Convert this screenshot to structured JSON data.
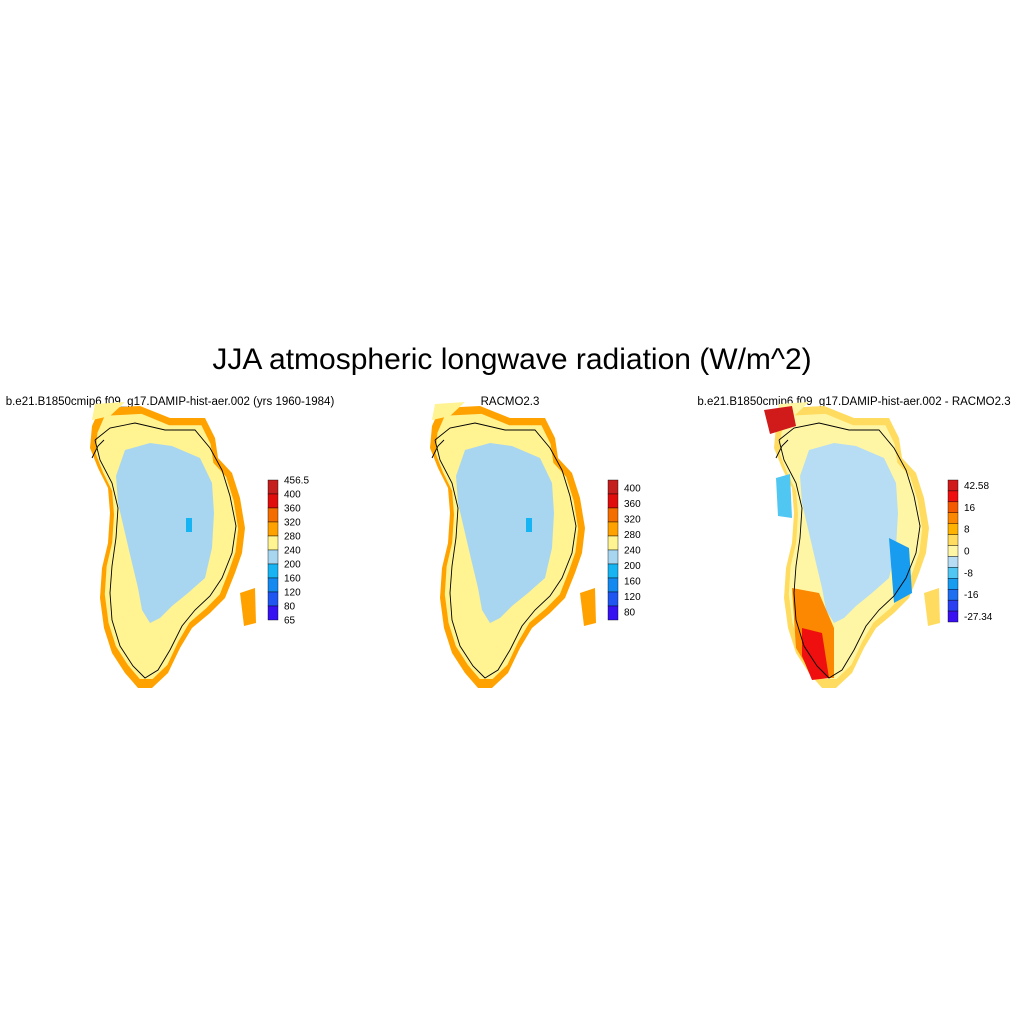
{
  "title": "JJA atmospheric longwave radiation (W/m^2)",
  "panels": [
    {
      "subtitle": "b.e21.B1850cmip6.f09_g17.DAMIP-hist-aer.002 (yrs 1960-1984)",
      "kind": "model",
      "colorbar": {
        "labels": [
          "456.5",
          "400",
          "360",
          "320",
          "280",
          "240",
          "200",
          "160",
          "120",
          "80",
          "65"
        ],
        "colors": [
          "#c41e1e",
          "#e10d0d",
          "#f36d00",
          "#ffa200",
          "#fff392",
          "#a8d6f0",
          "#16b4f2",
          "#1489f0",
          "#1f55f0",
          "#3612f2"
        ]
      }
    },
    {
      "subtitle": "RACMO2.3",
      "kind": "obs",
      "colorbar": {
        "labels": [
          "400",
          "360",
          "320",
          "280",
          "240",
          "200",
          "160",
          "120",
          "80"
        ],
        "colors": [
          "#c41e1e",
          "#e10d0d",
          "#f36d00",
          "#ffa200",
          "#fff392",
          "#a8d6f0",
          "#16b4f2",
          "#1489f0",
          "#1f55f0",
          "#3612f2"
        ]
      }
    },
    {
      "subtitle": "b.e21.B1850cmip6.f09_g17.DAMIP-hist-aer.002 - RACMO2.3",
      "kind": "diff",
      "colorbar": {
        "labels": [
          "42.58",
          "",
          "16",
          "",
          "8",
          "",
          "0",
          "",
          "-8",
          "",
          "-16",
          "",
          "-27.34"
        ],
        "colors": [
          "#d11a1a",
          "#ef0f0f",
          "#f55a00",
          "#fb8800",
          "#ffb300",
          "#ffdc60",
          "#fff6a5",
          "#b6ddf3",
          "#50c6f2",
          "#179cf0",
          "#1d6ef0",
          "#2a3ef2",
          "#3a10f2"
        ]
      }
    }
  ]
}
